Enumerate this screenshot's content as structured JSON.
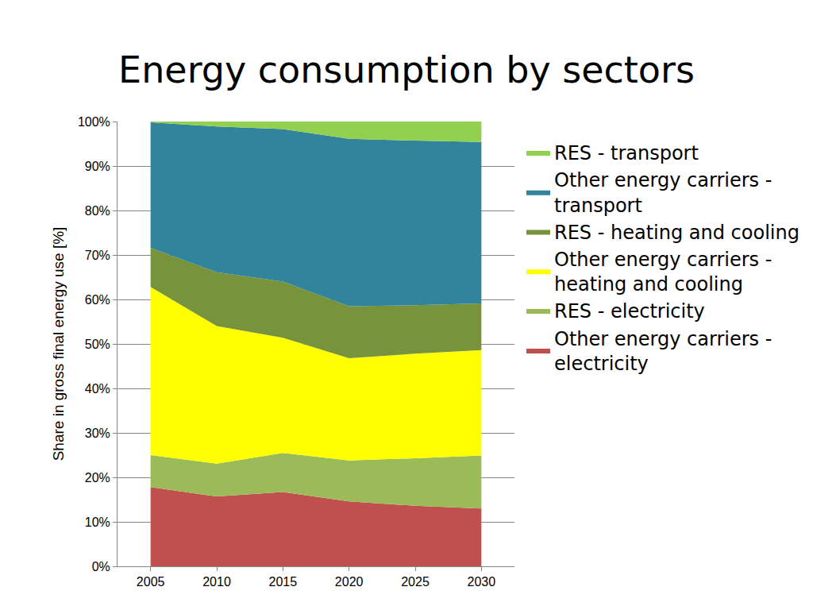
{
  "chart_data": {
    "type": "area",
    "title": "Energy consumption by sectors",
    "y_label": "Share in gross final energy use [%]",
    "stacked": true,
    "grid": true,
    "legend": "right",
    "x": [
      2005,
      2010,
      2015,
      2020,
      2025,
      2030
    ],
    "xlim": [
      2002.5,
      2032.5
    ],
    "xticks": [
      2005,
      2010,
      2015,
      2020,
      2025,
      2030
    ],
    "ylim": [
      0,
      100
    ],
    "yticks": [
      {
        "value": 0,
        "label": "0%"
      },
      {
        "value": 10,
        "label": "10%"
      },
      {
        "value": 20,
        "label": "20%"
      },
      {
        "value": 30,
        "label": "30%"
      },
      {
        "value": 40,
        "label": "40%"
      },
      {
        "value": 50,
        "label": "50%"
      },
      {
        "value": 60,
        "label": "60%"
      },
      {
        "value": 70,
        "label": "70%"
      },
      {
        "value": 80,
        "label": "80%"
      },
      {
        "value": 90,
        "label": "90%"
      },
      {
        "value": 100,
        "label": "100%"
      }
    ],
    "series": [
      {
        "name": "Other energy carriers - electricity",
        "color": "#C0504D",
        "values": [
          17.8,
          15.7,
          16.7,
          14.6,
          13.6,
          13.0
        ]
      },
      {
        "name": "RES - electricity",
        "color": "#9BBB59",
        "values": [
          7.2,
          7.4,
          8.8,
          9.2,
          10.7,
          11.9
        ]
      },
      {
        "name": "Other energy carriers - heating and cooling",
        "color": "#FFFF00",
        "values": [
          37.8,
          30.9,
          25.9,
          23.0,
          23.5,
          23.7
        ]
      },
      {
        "name": "RES - heating and cooling",
        "color": "#77933C",
        "values": [
          8.8,
          12.1,
          12.6,
          11.7,
          10.9,
          10.5
        ]
      },
      {
        "name": "Other energy carriers - transport",
        "color": "#31849B",
        "values": [
          28.2,
          32.8,
          34.3,
          37.6,
          37.0,
          36.3
        ]
      },
      {
        "name": "RES - transport",
        "color": "#92D050",
        "values": [
          0.2,
          1.1,
          1.7,
          3.9,
          4.3,
          4.6
        ]
      }
    ]
  }
}
